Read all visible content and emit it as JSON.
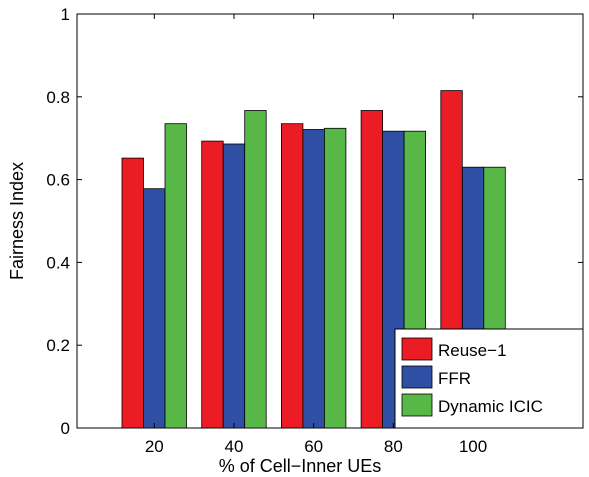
{
  "chart_data": {
    "type": "bar",
    "title": "",
    "xlabel": "% of Cell−Inner UEs",
    "ylabel": "Fairness Index",
    "categories": [
      "20",
      "40",
      "60",
      "80",
      "100"
    ],
    "ylim": [
      0,
      1
    ],
    "yticks": [
      "0",
      "0.2",
      "0.4",
      "0.6",
      "0.8",
      "1"
    ],
    "grid": false,
    "legend_position": "bottom-right",
    "series": [
      {
        "name": "Reuse−1",
        "color": "#ec1c24",
        "values": [
          0.652,
          0.693,
          0.735,
          0.767,
          0.815
        ]
      },
      {
        "name": "FFR",
        "color": "#2e4fa3",
        "values": [
          0.578,
          0.686,
          0.721,
          0.717,
          0.63
        ]
      },
      {
        "name": "Dynamic ICIC",
        "color": "#57b847",
        "values": [
          0.735,
          0.767,
          0.724,
          0.717,
          0.63
        ]
      }
    ]
  }
}
